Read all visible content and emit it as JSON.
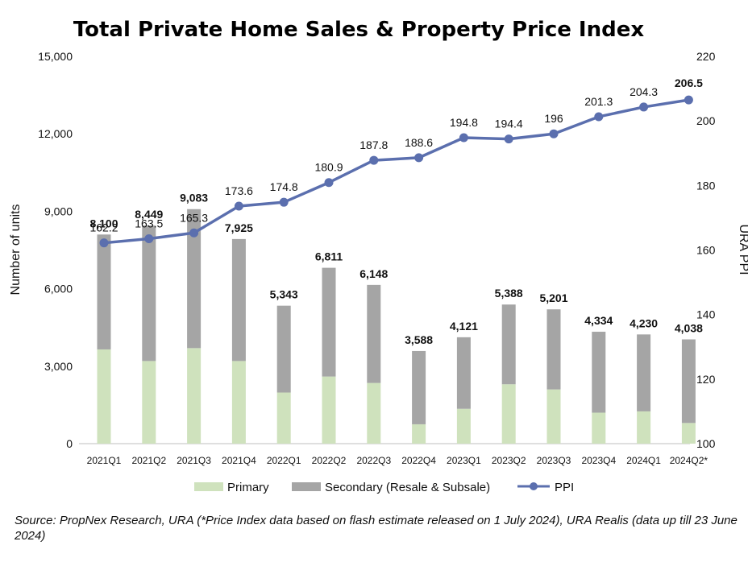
{
  "chart_data": {
    "type": "bar",
    "title": "Total Private Home Sales & Property Price Index",
    "ylabel": "Number of units",
    "y2label": "URA PPI",
    "ylim": [
      0,
      15000
    ],
    "y2lim": [
      100,
      220
    ],
    "yticks": [
      "0",
      "3,000",
      "6,000",
      "9,000",
      "12,000",
      "15,000"
    ],
    "y2ticks": [
      "100",
      "120",
      "140",
      "160",
      "180",
      "200",
      "220"
    ],
    "categories": [
      "2021Q1",
      "2021Q2",
      "2021Q3",
      "2021Q4",
      "2022Q1",
      "2022Q2",
      "2022Q3",
      "2022Q4",
      "2023Q1",
      "2023Q2",
      "2023Q3",
      "2023Q4",
      "2024Q1",
      "2024Q2*"
    ],
    "series": [
      {
        "name": "Primary",
        "type": "bar",
        "stack": "sales",
        "color": "#cfe2bd",
        "values": [
          3650,
          3200,
          3700,
          3200,
          1980,
          2600,
          2350,
          750,
          1350,
          2300,
          2100,
          1200,
          1250,
          800
        ]
      },
      {
        "name": "Secondary (Resale & Subsale)",
        "type": "bar",
        "stack": "sales",
        "color": "#a5a5a5",
        "values": [
          4450,
          5249,
          5383,
          4725,
          3363,
          4211,
          3798,
          2838,
          2771,
          3088,
          3101,
          3134,
          2980,
          3238
        ]
      },
      {
        "name": "PPI",
        "type": "line",
        "axis": "y2",
        "color": "#5b6fae",
        "values": [
          162.2,
          163.5,
          165.3,
          173.6,
          174.8,
          180.9,
          187.8,
          188.6,
          194.8,
          194.4,
          196,
          201.3,
          204.3,
          206.5
        ]
      }
    ],
    "total_labels": [
      "8,100",
      "8,449",
      "9,083",
      "7,925",
      "5,343",
      "6,811",
      "6,148",
      "3,588",
      "4,121",
      "5,388",
      "5,201",
      "4,334",
      "4,230",
      "4,038"
    ],
    "ppi_labels": [
      "162.2",
      "163.5",
      "165.3",
      "173.6",
      "174.8",
      "180.9",
      "187.8",
      "188.6",
      "194.8",
      "194.4",
      "196",
      "201.3",
      "204.3",
      "206.5"
    ],
    "highlight_label_color": "#6b9bd2",
    "legend_position": "bottom",
    "grid": false
  },
  "source": "Source: PropNex Research, URA (*Price Index data based on flash estimate released on 1 July 2024), URA Realis (data up till 23 June 2024)"
}
